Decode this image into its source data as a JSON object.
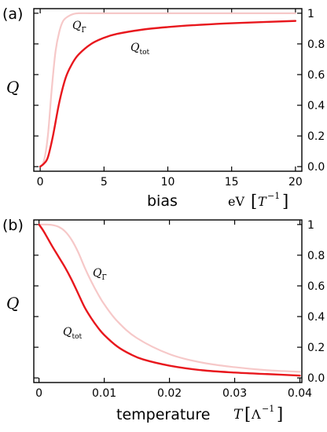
{
  "chart_data": [
    {
      "type": "line",
      "panel_label": "(a)",
      "xlabel": "bias",
      "xunit_var": "eV",
      "xunit_inner": "T",
      "xunit_sup": "−1",
      "ylabel": "Q",
      "xlim": [
        -0.5,
        20.5
      ],
      "ylim": [
        -0.03,
        1.03
      ],
      "x_ticks": [
        "0",
        "5",
        "10",
        "15",
        "20"
      ],
      "y_ticks": [
        "0.0",
        "0.2",
        "0.4",
        "0.6",
        "0.8",
        "1"
      ],
      "grid": false,
      "series": [
        {
          "name": "Q",
          "name_sub": "Γ̃",
          "color": "#f6c8c8",
          "x": [
            0,
            0.3,
            0.6,
            0.9,
            1.2,
            1.5,
            1.8,
            2.2,
            2.6,
            3,
            4,
            6,
            10,
            20
          ],
          "y": [
            0.0,
            0.04,
            0.2,
            0.5,
            0.75,
            0.88,
            0.95,
            0.98,
            0.995,
            1.0,
            1.0,
            1.0,
            1.0,
            1.0
          ]
        },
        {
          "name": "Q",
          "name_sub": "tot",
          "color": "#e8171d",
          "x": [
            0,
            0.3,
            0.6,
            1,
            1.5,
            2,
            2.5,
            3,
            4,
            5,
            6,
            8,
            10,
            12,
            15,
            20
          ],
          "y": [
            0.0,
            0.02,
            0.06,
            0.2,
            0.42,
            0.58,
            0.67,
            0.73,
            0.8,
            0.84,
            0.865,
            0.893,
            0.91,
            0.922,
            0.935,
            0.95
          ]
        }
      ]
    },
    {
      "type": "line",
      "panel_label": "(b)",
      "xlabel": "temperature",
      "xunit_var": "T",
      "xunit_inner": "Λ",
      "xunit_sup": "−1",
      "ylabel": "Q",
      "xlim": [
        -0.0008,
        0.0403
      ],
      "ylim": [
        -0.03,
        1.03
      ],
      "x_ticks": [
        "0",
        "0.01",
        "0.02",
        "0.03",
        "0.04"
      ],
      "y_ticks": [
        "0.0",
        "0.2",
        "0.4",
        "0.6",
        "0.8",
        "1"
      ],
      "grid": false,
      "series": [
        {
          "name": "Q",
          "name_sub": "Γ̃",
          "color": "#f6c8c8",
          "x": [
            0,
            0.001,
            0.002,
            0.003,
            0.004,
            0.005,
            0.006,
            0.007,
            0.008,
            0.009,
            0.01,
            0.012,
            0.015,
            0.02,
            0.025,
            0.03,
            0.035,
            0.04
          ],
          "y": [
            1.0,
            1.0,
            0.997,
            0.985,
            0.955,
            0.9,
            0.82,
            0.72,
            0.63,
            0.55,
            0.48,
            0.37,
            0.26,
            0.155,
            0.1,
            0.07,
            0.05,
            0.04
          ]
        },
        {
          "name": "Q",
          "name_sub": "tot",
          "color": "#e8171d",
          "x": [
            0,
            0.0005,
            0.001,
            0.002,
            0.003,
            0.004,
            0.005,
            0.006,
            0.007,
            0.008,
            0.009,
            0.01,
            0.012,
            0.014,
            0.016,
            0.02,
            0.025,
            0.03,
            0.035,
            0.04
          ],
          "y": [
            1.0,
            0.97,
            0.935,
            0.86,
            0.79,
            0.72,
            0.64,
            0.55,
            0.46,
            0.39,
            0.33,
            0.28,
            0.205,
            0.155,
            0.12,
            0.08,
            0.05,
            0.035,
            0.025,
            0.015
          ]
        }
      ]
    }
  ]
}
